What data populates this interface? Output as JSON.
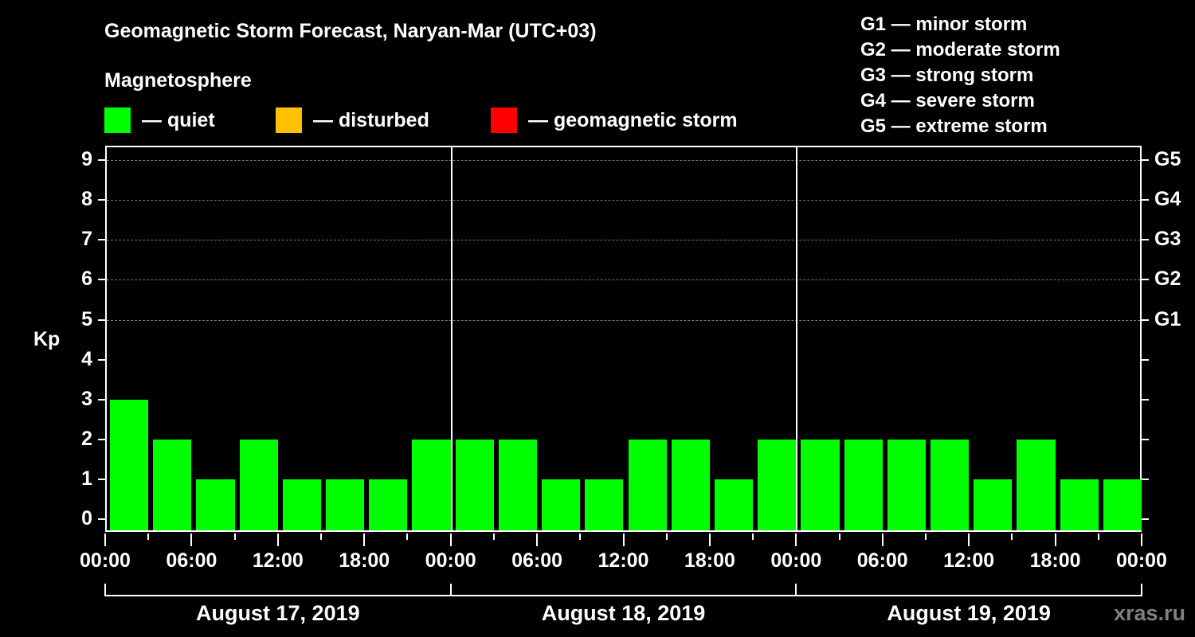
{
  "title": "Geomagnetic Storm Forecast, Naryan-Mar (UTC+03)",
  "subtitle": "Magnetosphere",
  "legend": [
    {
      "label": "— quiet",
      "color": "#00ff00"
    },
    {
      "label": "— disturbed",
      "color": "#ffc000"
    },
    {
      "label": "— geomagnetic storm",
      "color": "#ff0000"
    }
  ],
  "g_scale": [
    "G1 — minor storm",
    "G2 — moderate storm",
    "G3 — strong storm",
    "G4 — severe storm",
    "G5 — extreme storm"
  ],
  "y_axis": {
    "label": "Kp",
    "ticks": [
      "0",
      "1",
      "2",
      "3",
      "4",
      "5",
      "6",
      "7",
      "8",
      "9"
    ]
  },
  "right_axis": {
    "5": "G1",
    "6": "G2",
    "7": "G3",
    "8": "G4",
    "9": "G5"
  },
  "x_ticks": [
    "00:00",
    "06:00",
    "12:00",
    "18:00",
    "00:00",
    "06:00",
    "12:00",
    "18:00",
    "00:00",
    "06:00",
    "12:00",
    "18:00",
    "00:00"
  ],
  "days": [
    "August 17, 2019",
    "August 18, 2019",
    "August 19, 2019"
  ],
  "watermark": "xras.ru",
  "chart_data": {
    "type": "bar",
    "title": "Geomagnetic Storm Forecast, Naryan-Mar (UTC+03)",
    "subtitle": "Magnetosphere",
    "xlabel": "",
    "ylabel": "Kp",
    "ylim": [
      0,
      9
    ],
    "grid": "dashed horizontal at Kp 5-9",
    "interval_hours": 3,
    "categories": [
      "Aug 17 00:00",
      "Aug 17 03:00",
      "Aug 17 06:00",
      "Aug 17 09:00",
      "Aug 17 12:00",
      "Aug 17 15:00",
      "Aug 17 18:00",
      "Aug 17 21:00",
      "Aug 18 00:00",
      "Aug 18 03:00",
      "Aug 18 06:00",
      "Aug 18 09:00",
      "Aug 18 12:00",
      "Aug 18 15:00",
      "Aug 18 18:00",
      "Aug 18 21:00",
      "Aug 19 00:00",
      "Aug 19 03:00",
      "Aug 19 06:00",
      "Aug 19 09:00",
      "Aug 19 12:00",
      "Aug 19 15:00",
      "Aug 19 18:00",
      "Aug 19 21:00"
    ],
    "values": [
      3,
      2,
      1,
      2,
      1,
      1,
      1,
      2,
      2,
      2,
      1,
      1,
      2,
      2,
      1,
      2,
      2,
      2,
      2,
      2,
      1,
      2,
      1,
      1
    ],
    "bar_status": "quiet",
    "bar_color": "#00ff00",
    "legend": [
      "quiet",
      "disturbed",
      "geomagnetic storm"
    ],
    "right_axis_labels": {
      "5": "G1",
      "6": "G2",
      "7": "G3",
      "8": "G4",
      "9": "G5"
    }
  }
}
